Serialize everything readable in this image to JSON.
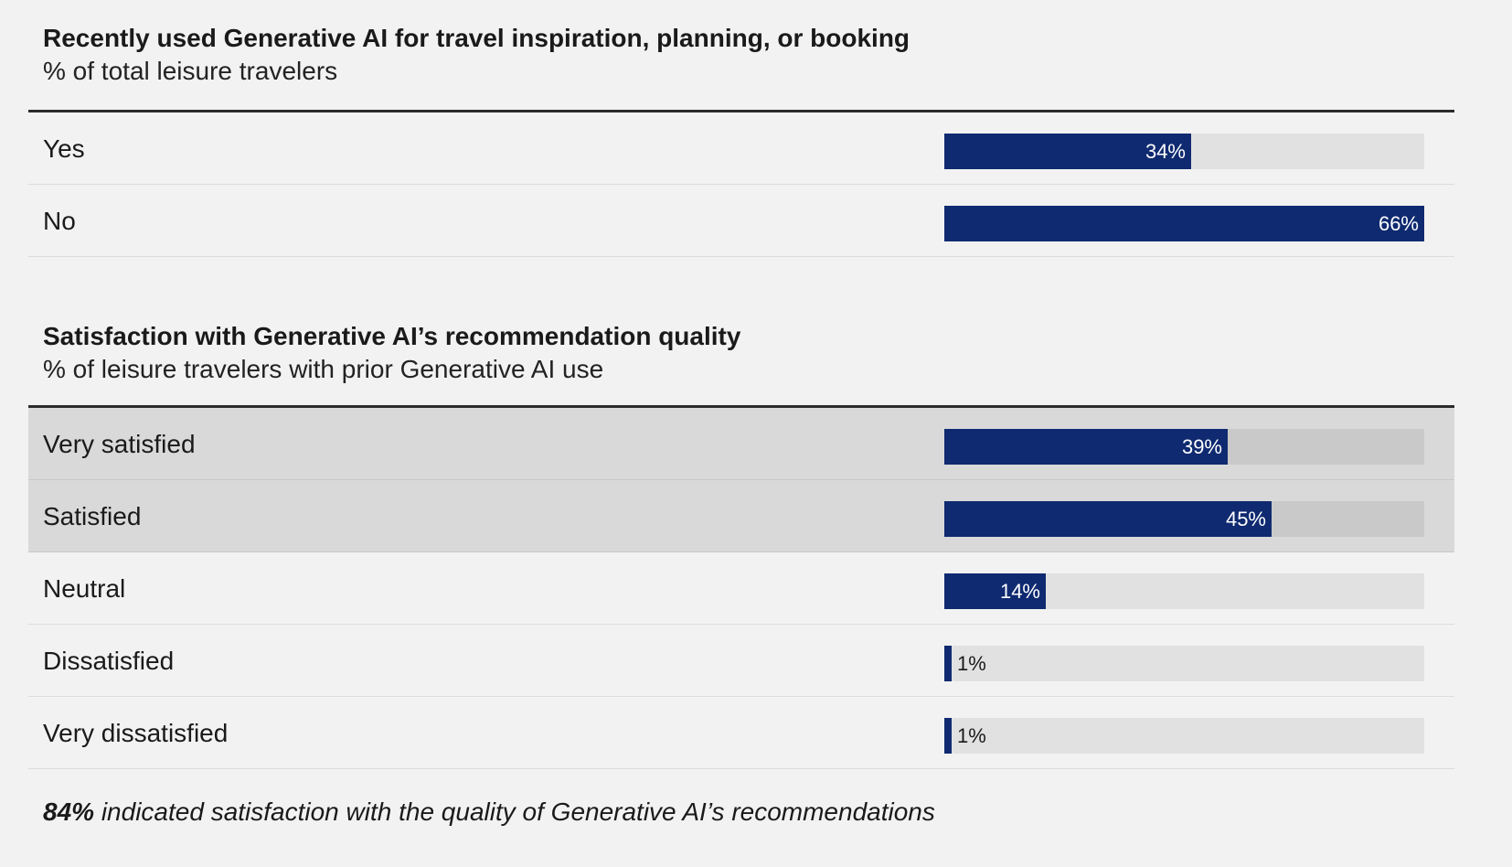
{
  "chart_data": [
    {
      "type": "bar",
      "orientation": "horizontal",
      "title": "Recently used Generative AI for travel inspiration, planning, or booking",
      "subtitle": "% of total leisure travelers",
      "categories": [
        "Yes",
        "No"
      ],
      "values": [
        34,
        66
      ],
      "value_labels": [
        "34%",
        "66%"
      ],
      "xlim": [
        0,
        66
      ],
      "highlighted": [
        false,
        false
      ],
      "grid": false
    },
    {
      "type": "bar",
      "orientation": "horizontal",
      "title": "Satisfaction with Generative AI’s recommendation quality",
      "subtitle": "% of leisure travelers with prior Generative AI use",
      "categories": [
        "Very satisfied",
        "Satisfied",
        "Neutral",
        "Dissatisfied",
        "Very dissatisfied"
      ],
      "values": [
        39,
        45,
        14,
        1,
        1
      ],
      "value_labels": [
        "39%",
        "45%",
        "14%",
        "1%",
        "1%"
      ],
      "xlim": [
        0,
        66
      ],
      "highlighted": [
        true,
        true,
        false,
        false,
        false
      ],
      "grid": false
    }
  ],
  "footnote": {
    "emphasis": "84%",
    "text": " indicated satisfaction with the quality of Generative AI’s recommendations"
  },
  "colors": {
    "bar": "#0f2a70",
    "track": "#e1e1e1",
    "track_highlight": "#c9c9c9",
    "row_highlight": "#d9d9d9",
    "background": "#f2f2f2"
  }
}
